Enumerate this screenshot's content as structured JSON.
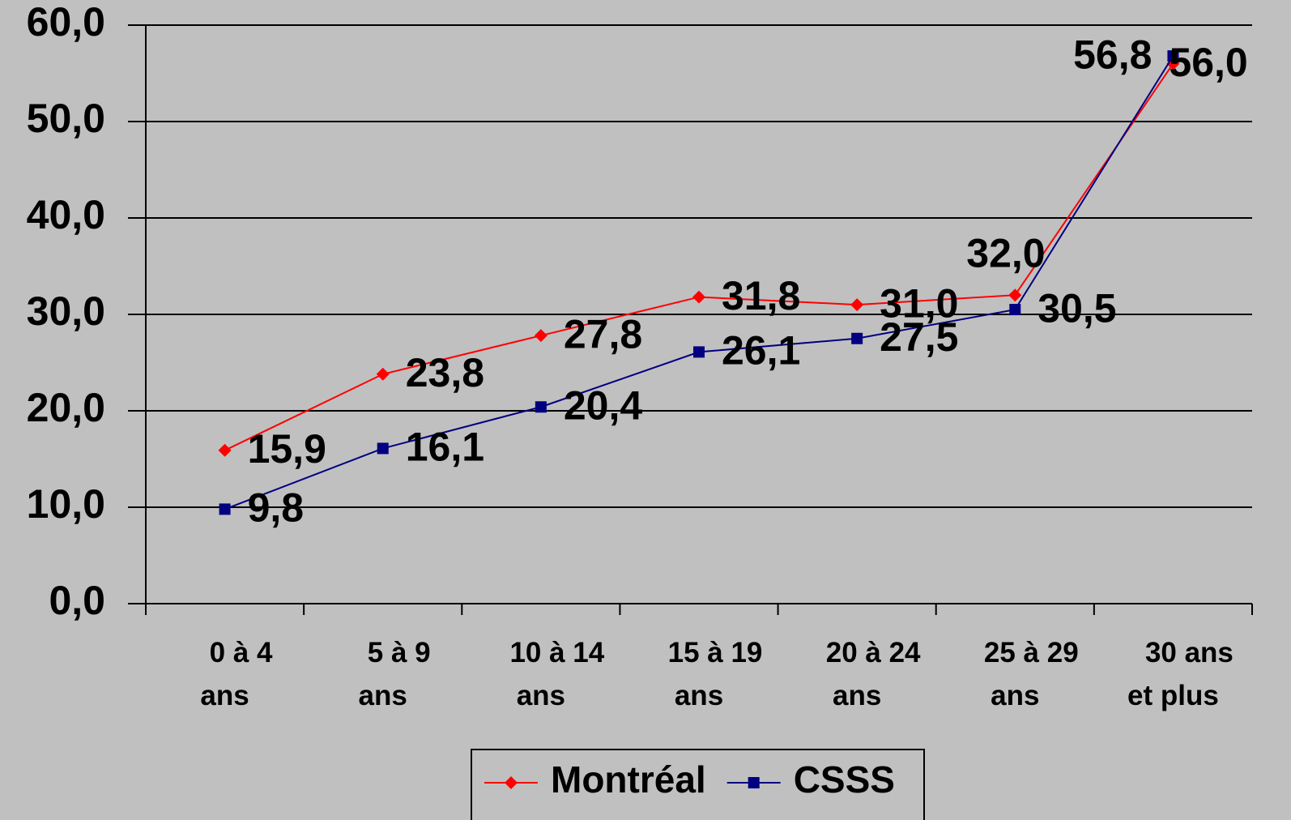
{
  "chart_data": {
    "type": "line",
    "categories": [
      "0 à 4\nans",
      "5 à 9\nans",
      "10 à 14\nans",
      "15 à 19\nans",
      "20 à 24\nans",
      "25 à 29\nans",
      "30 ans\net plus"
    ],
    "series": [
      {
        "name": "Montréal",
        "color": "#ff0000",
        "marker": "diamond",
        "values": [
          15.9,
          23.8,
          27.8,
          31.8,
          31.0,
          32.0,
          56.0
        ],
        "value_labels": [
          "15,9",
          "23,8",
          "27,8",
          "31,8",
          "31,0",
          "32,0",
          "56,0"
        ]
      },
      {
        "name": "CSSS",
        "color": "#000080",
        "marker": "square",
        "values": [
          9.8,
          16.1,
          20.4,
          26.1,
          27.5,
          30.5,
          56.8
        ],
        "value_labels": [
          "9,8",
          "16,1",
          "20,4",
          "26,1",
          "27,5",
          "30,5",
          "56,8"
        ]
      }
    ],
    "ylim": [
      0,
      60
    ],
    "yticks": [
      {
        "value": 0,
        "label": "0,0"
      },
      {
        "value": 10,
        "label": "10,0"
      },
      {
        "value": 20,
        "label": "20,0"
      },
      {
        "value": 30,
        "label": "30,0"
      },
      {
        "value": 40,
        "label": "40,0"
      },
      {
        "value": 50,
        "label": "50,0"
      },
      {
        "value": 60,
        "label": "60,0"
      }
    ],
    "grid": true,
    "legend": "bottom"
  }
}
